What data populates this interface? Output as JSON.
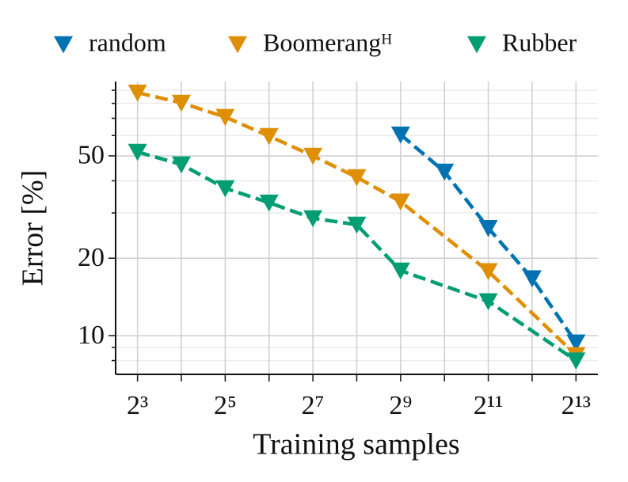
{
  "chart_data": {
    "type": "line",
    "xlabel": "Training samples",
    "ylabel": "Error [%]",
    "log_x": true,
    "log_y": true,
    "grid": true,
    "legend": "top",
    "xlim": [
      5.66,
      11585
    ],
    "ylim": [
      7.07,
      97.3
    ],
    "xticks": [
      {
        "value": 8,
        "label": "2³"
      },
      {
        "value": 32,
        "label": "2⁵"
      },
      {
        "value": 128,
        "label": "2⁷"
      },
      {
        "value": 512,
        "label": "2⁹"
      },
      {
        "value": 2048,
        "label": "2¹¹"
      },
      {
        "value": 8192,
        "label": "2¹³"
      }
    ],
    "xminorticks": [
      16,
      64,
      256,
      1024,
      4096
    ],
    "yticks": [
      10,
      20,
      50
    ],
    "yminorticks": [
      8,
      9,
      30,
      40,
      60,
      70,
      80,
      90
    ],
    "series": [
      {
        "name": "random",
        "color": "#0173b2",
        "x": [
          512,
          1024,
          2048,
          4096,
          8192
        ],
        "values": [
          60.5,
          43.4,
          26.2,
          16.7,
          9.4
        ]
      },
      {
        "name": "Boomerangᴴ",
        "color": "#de8f05",
        "x": [
          8,
          16,
          32,
          64,
          128,
          256,
          512,
          2048,
          8192
        ],
        "values": [
          88.1,
          80.4,
          70.8,
          59.7,
          50,
          41.3,
          33.2,
          17.8,
          8.4
        ]
      },
      {
        "name": "Rubber",
        "color": "#029e73",
        "x": [
          8,
          16,
          32,
          64,
          128,
          256,
          512,
          2048,
          8192
        ],
        "values": [
          51.8,
          46.3,
          37.4,
          32.9,
          28.6,
          27.0,
          17.9,
          13.6,
          8.0
        ]
      }
    ]
  }
}
